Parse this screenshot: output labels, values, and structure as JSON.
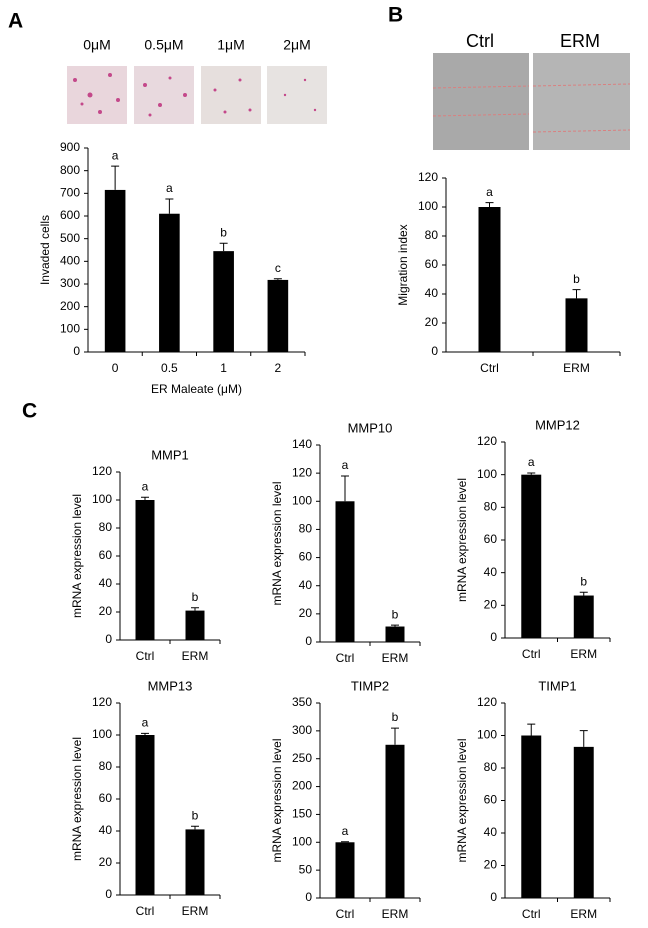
{
  "panel_labels": [
    "A",
    "B",
    "C"
  ],
  "image_labels_a": [
    "0μM",
    "0.5μM",
    "1μM",
    "2μM"
  ],
  "image_labels_b": [
    "Ctrl",
    "ERM"
  ],
  "chart_data": [
    {
      "type": "bar",
      "ylabel": "Invaded cells",
      "xlabel": "ER Maleate (μM)",
      "categories": [
        "0",
        "0.5",
        "1",
        "2"
      ],
      "values": [
        715,
        610,
        445,
        318
      ],
      "errors": [
        105,
        65,
        35,
        5
      ],
      "annotations": [
        "a",
        "a",
        "b",
        "c"
      ],
      "color": "#000000",
      "ylim": [
        0,
        900
      ],
      "yticks": [
        0,
        100,
        200,
        300,
        400,
        500,
        600,
        700,
        800,
        900
      ]
    },
    {
      "type": "bar",
      "ylabel": "Migration index",
      "categories": [
        "Ctrl",
        "ERM"
      ],
      "values": [
        100,
        37
      ],
      "errors": [
        3,
        6
      ],
      "annotations": [
        "a",
        "b"
      ],
      "color": "#000000",
      "ylim": [
        0,
        120
      ],
      "yticks": [
        0,
        20,
        40,
        60,
        80,
        100,
        120
      ]
    },
    {
      "type": "bar",
      "title": "MMP1",
      "ylabel": "mRNA expression level",
      "categories": [
        "Ctrl",
        "ERM"
      ],
      "values": [
        100,
        21
      ],
      "errors": [
        2,
        2
      ],
      "annotations": [
        "a",
        "b"
      ],
      "color": "#000000",
      "ylim": [
        0,
        120
      ],
      "yticks": [
        0,
        20,
        40,
        60,
        80,
        100,
        120
      ]
    },
    {
      "type": "bar",
      "title": "MMP10",
      "ylabel": "mRNA expression level",
      "categories": [
        "Ctrl",
        "ERM"
      ],
      "values": [
        100,
        11
      ],
      "errors": [
        18,
        1
      ],
      "annotations": [
        "a",
        "b"
      ],
      "color": "#000000",
      "ylim": [
        0,
        140
      ],
      "yticks": [
        0,
        20,
        40,
        60,
        80,
        100,
        120,
        140
      ]
    },
    {
      "type": "bar",
      "title": "MMP12",
      "ylabel": "mRNA expression level",
      "categories": [
        "Ctrl",
        "ERM"
      ],
      "values": [
        100,
        26
      ],
      "errors": [
        1,
        2
      ],
      "annotations": [
        "a",
        "b"
      ],
      "color": "#000000",
      "ylim": [
        0,
        120
      ],
      "yticks": [
        0,
        20,
        40,
        60,
        80,
        100,
        120
      ]
    },
    {
      "type": "bar",
      "title": "MMP13",
      "ylabel": "mRNA expression level",
      "categories": [
        "Ctrl",
        "ERM"
      ],
      "values": [
        100,
        41
      ],
      "errors": [
        1,
        2
      ],
      "annotations": [
        "a",
        "b"
      ],
      "color": "#000000",
      "ylim": [
        0,
        120
      ],
      "yticks": [
        0,
        20,
        40,
        60,
        80,
        100,
        120
      ]
    },
    {
      "type": "bar",
      "title": "TIMP2",
      "ylabel": "mRNA expression level",
      "categories": [
        "Ctrl",
        "ERM"
      ],
      "values": [
        100,
        275
      ],
      "errors": [
        1,
        30
      ],
      "annotations": [
        "a",
        "b"
      ],
      "color": "#000000",
      "ylim": [
        0,
        350
      ],
      "yticks": [
        0,
        50,
        100,
        150,
        200,
        250,
        300,
        350
      ]
    },
    {
      "type": "bar",
      "title": "TIMP1",
      "ylabel": "mRNA expression level",
      "categories": [
        "Ctrl",
        "ERM"
      ],
      "values": [
        100,
        93
      ],
      "errors": [
        7,
        10
      ],
      "color": "#000000",
      "ylim": [
        0,
        120
      ],
      "yticks": [
        0,
        20,
        40,
        60,
        80,
        100,
        120
      ]
    }
  ]
}
